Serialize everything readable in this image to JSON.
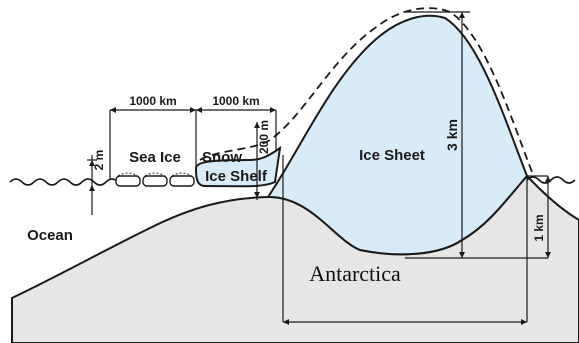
{
  "labels": {
    "sea_ice": "Sea Ice",
    "snow": "Snow",
    "ice_shelf": "Ice Shelf",
    "ice_sheet": "Ice Sheet",
    "ocean": "Ocean",
    "antarctica": "Antarctica"
  },
  "dimensions": {
    "sea_ice_width": "1000 km",
    "ice_shelf_width": "1000 km",
    "sea_ice_thickness": "2 m",
    "ice_shelf_thickness": "200 m",
    "ice_sheet_height": "3 km",
    "bedrock_depth": "1 km"
  },
  "colors": {
    "ice": "#d8ebf9",
    "rock": "#e6e6e6",
    "line": "#1a1a1a",
    "background": "#ffffff"
  }
}
